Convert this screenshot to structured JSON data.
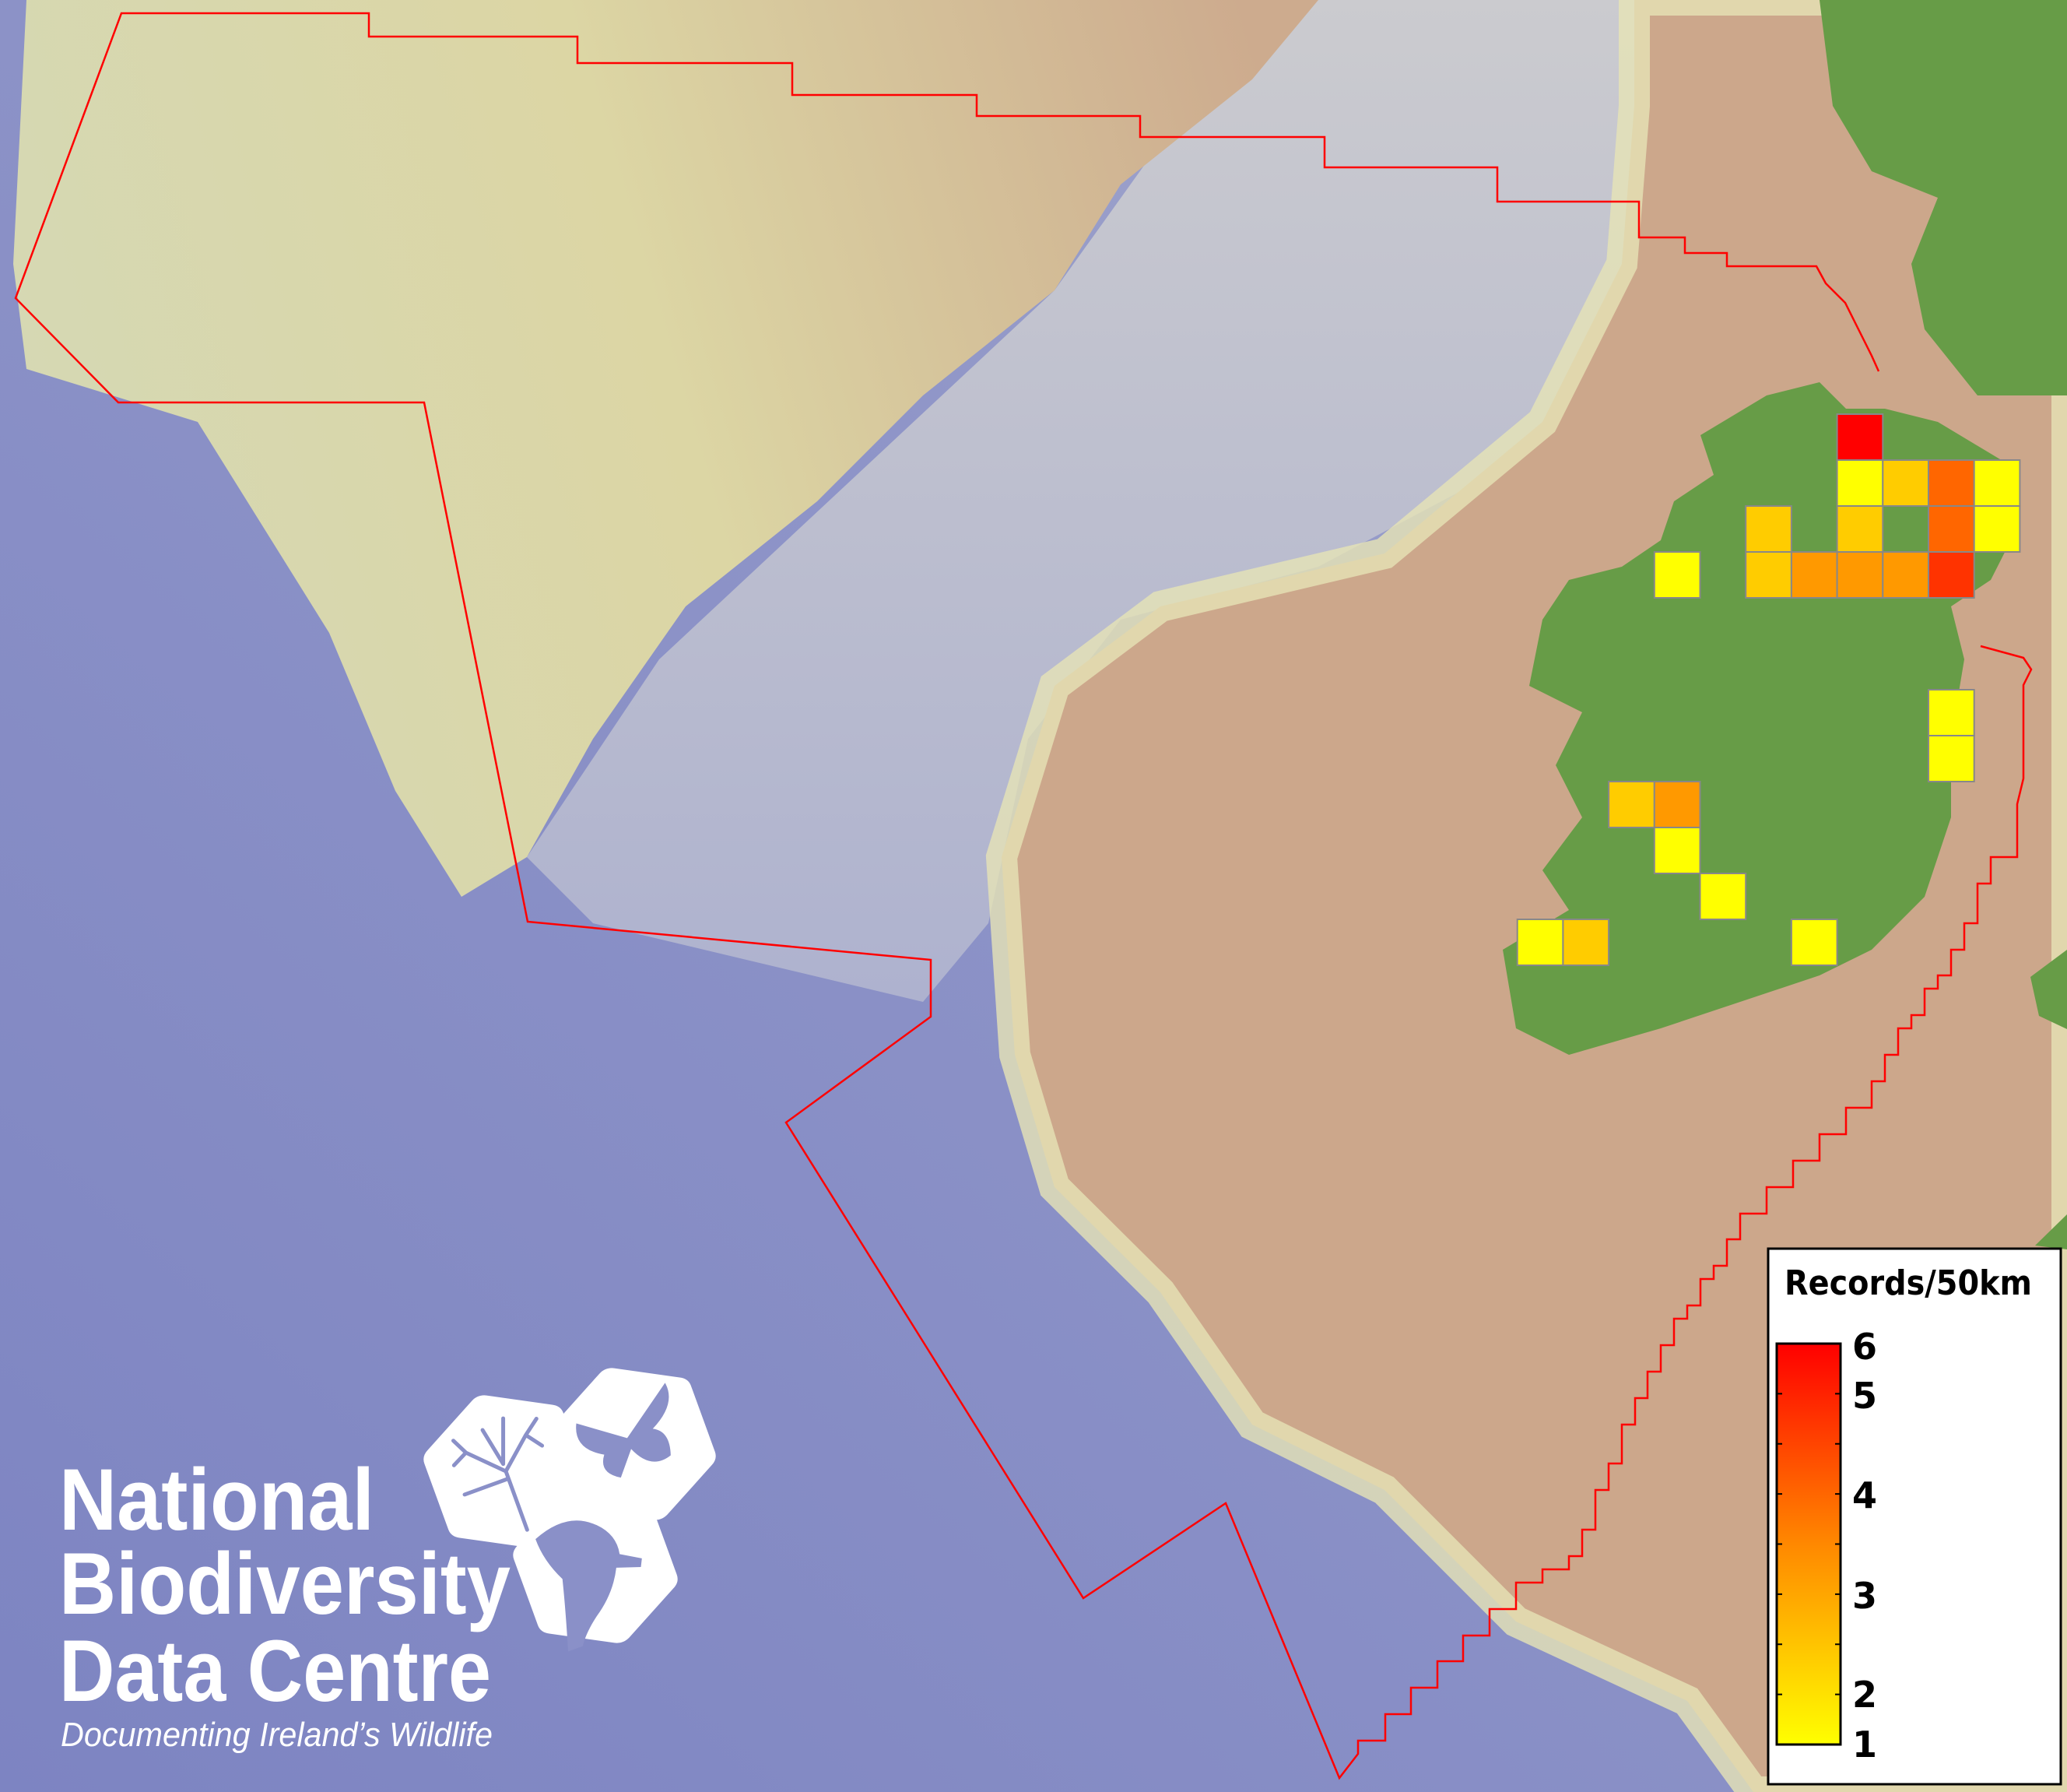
{
  "map": {
    "colors": {
      "deep_ocean": "#8088c4",
      "trough": "#c3c5d2",
      "plateau": "#d8d7a9",
      "shelf": "#cca78b",
      "land": "#679c47",
      "boundary": "#ff0000",
      "cell_border": "#888888"
    },
    "boundary_label": "",
    "cells": [
      {
        "value": 6,
        "color": "#ff0000"
      },
      {
        "value": 1,
        "color": "#ffff00"
      },
      {
        "value": 2,
        "color": "#ffcc00"
      },
      {
        "value": 4,
        "color": "#ff6600"
      },
      {
        "value": 1,
        "color": "#ffff00"
      },
      {
        "value": 2,
        "color": "#ffcc00"
      },
      {
        "value": 2,
        "color": "#ffcc00"
      },
      {
        "value": 4,
        "color": "#ff6600"
      },
      {
        "value": 1,
        "color": "#ffff00"
      },
      {
        "value": 1,
        "color": "#ffff00"
      },
      {
        "value": 2,
        "color": "#ffcc00"
      },
      {
        "value": 3,
        "color": "#ff9900"
      },
      {
        "value": 3,
        "color": "#ff9900"
      },
      {
        "value": 3,
        "color": "#ff9900"
      },
      {
        "value": 5,
        "color": "#ff3300"
      },
      {
        "value": 1,
        "color": "#ffff00"
      },
      {
        "value": 1,
        "color": "#ffff00"
      },
      {
        "value": 2,
        "color": "#ffcc00"
      },
      {
        "value": 3,
        "color": "#ff9900"
      },
      {
        "value": 1,
        "color": "#ffff00"
      },
      {
        "value": 1,
        "color": "#ffff00"
      },
      {
        "value": 1,
        "color": "#ffff00"
      },
      {
        "value": 2,
        "color": "#ffcc00"
      },
      {
        "value": 1,
        "color": "#ffff00"
      }
    ]
  },
  "legend": {
    "title": "Records/50km",
    "ticks": [
      "6",
      "5",
      "4",
      "3",
      "2",
      "1"
    ],
    "min": 1,
    "max": 6,
    "color_low": "#ffff00",
    "color_mid": "#ff8800",
    "color_high": "#ff0000"
  },
  "logo": {
    "line1": "National",
    "line2": "Biodiversity",
    "line3": "Data Centre",
    "tagline": "Documenting Ireland’s Wildlife",
    "icons": [
      "tree-icon",
      "butterfly-icon",
      "seahorse-icon"
    ]
  }
}
